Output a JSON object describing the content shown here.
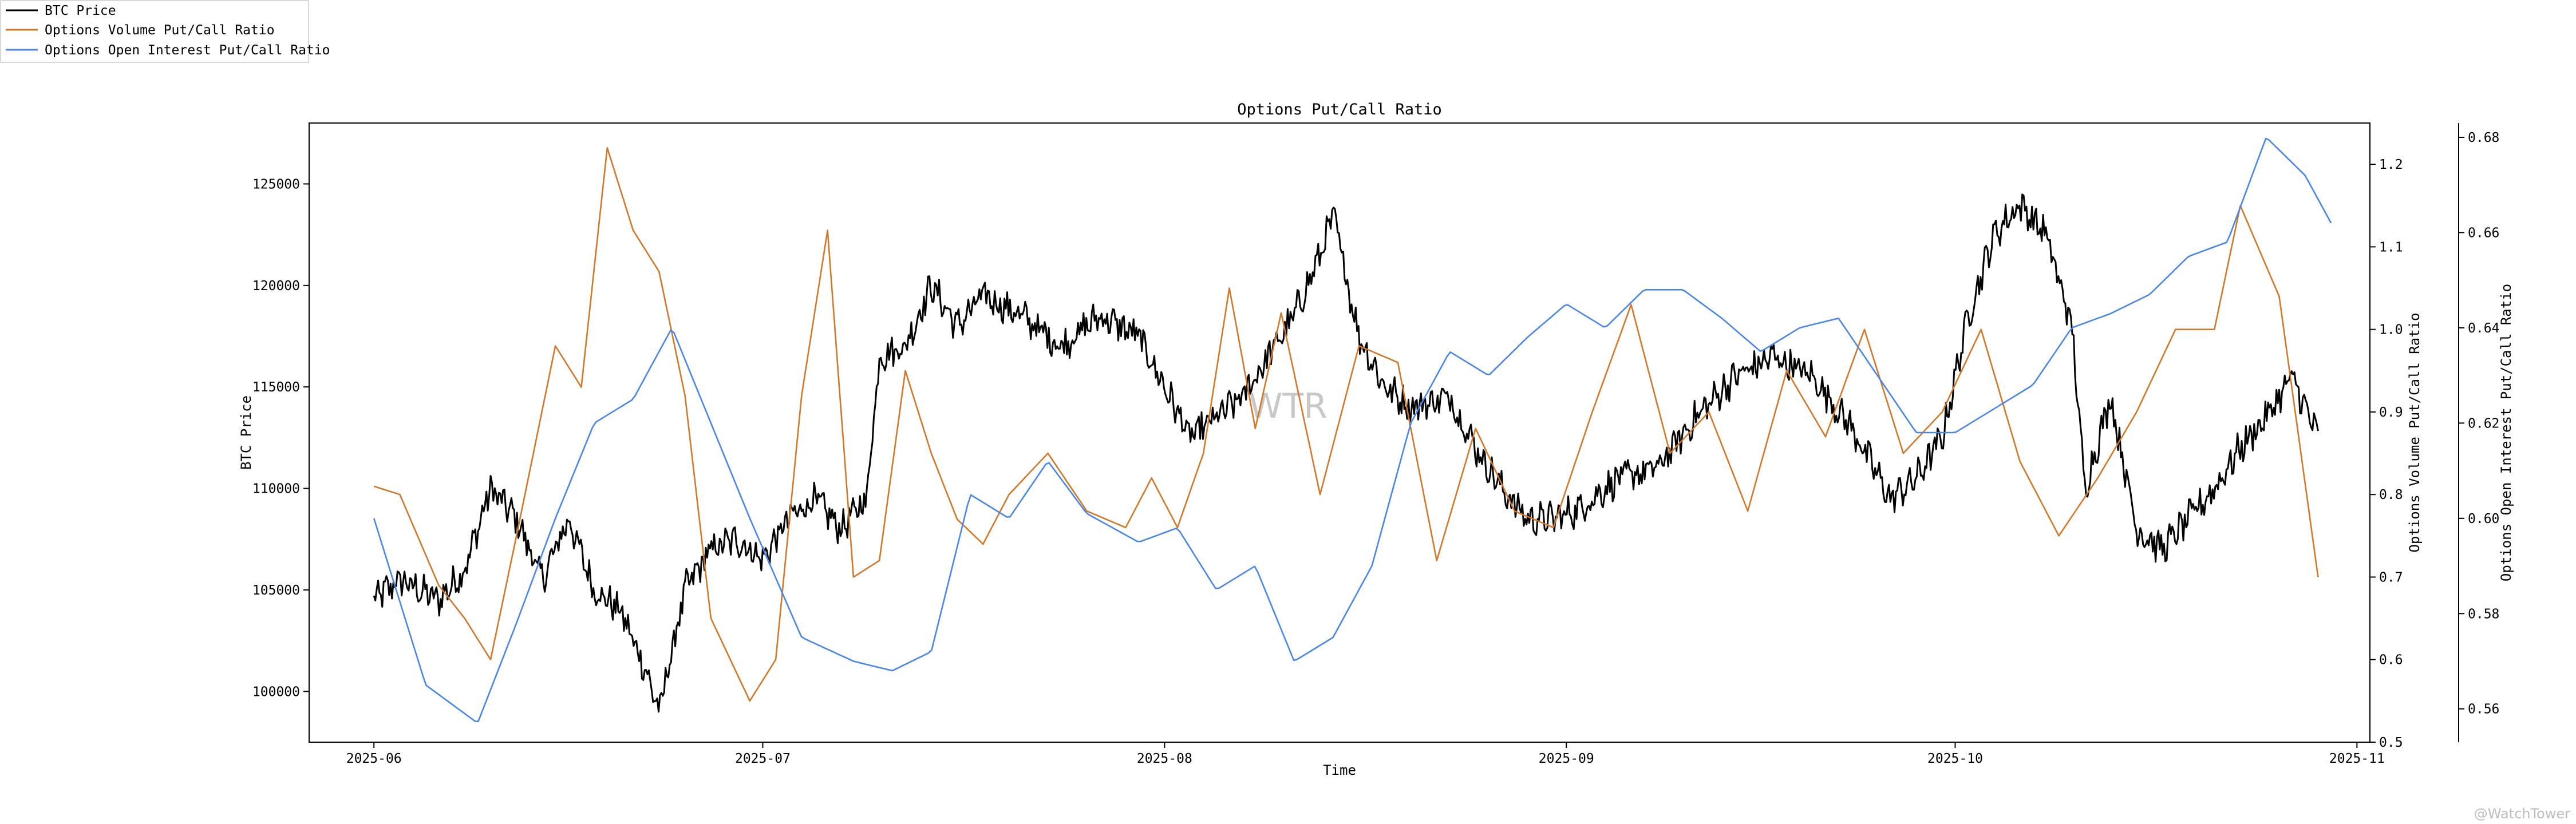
{
  "chart_data": {
    "type": "line",
    "title": "Options Put/Call Ratio",
    "xlabel": "Time",
    "x_ticks": [
      "2025-06",
      "2025-07",
      "2025-08",
      "2025-09",
      "2025-10",
      "2025-11"
    ],
    "x_range": [
      "2025-05-27",
      "2025-11-02"
    ],
    "watermark": "WTR",
    "corner_watermark": "@WatchTower",
    "legend_position": "top-left",
    "axes": [
      {
        "id": "btc",
        "label": "BTC Price",
        "side": "left",
        "range": [
          97500,
          128000
        ],
        "ticks": [
          "100000",
          "105000",
          "110000",
          "115000",
          "120000",
          "125000"
        ]
      },
      {
        "id": "vol",
        "label": "Options Volume Put/Call Ratio",
        "side": "right",
        "range": [
          0.5,
          1.25
        ],
        "ticks": [
          "0.5",
          "0.6",
          "0.7",
          "0.8",
          "0.9",
          "1.0",
          "1.1",
          "1.2"
        ]
      },
      {
        "id": "oi",
        "label": "Options Open Interest Put/Call Ratio",
        "side": "right-outer",
        "range": [
          0.553,
          0.683
        ],
        "ticks": [
          "0.56",
          "0.58",
          "0.60",
          "0.62",
          "0.64",
          "0.66",
          "0.68"
        ]
      }
    ],
    "series": [
      {
        "name": "BTC Price",
        "axis": "btc",
        "color": "#000000",
        "x": [
          "2025-06-01",
          "2025-06-03",
          "2025-06-06",
          "2025-06-08",
          "2025-06-10",
          "2025-06-12",
          "2025-06-14",
          "2025-06-16",
          "2025-06-18",
          "2025-06-20",
          "2025-06-22",
          "2025-06-23",
          "2025-06-25",
          "2025-06-27",
          "2025-06-29",
          "2025-07-01",
          "2025-07-03",
          "2025-07-05",
          "2025-07-07",
          "2025-07-09",
          "2025-07-10",
          "2025-07-12",
          "2025-07-14",
          "2025-07-16",
          "2025-07-18",
          "2025-07-21",
          "2025-07-24",
          "2025-07-27",
          "2025-07-30",
          "2025-08-01",
          "2025-08-03",
          "2025-08-05",
          "2025-08-07",
          "2025-08-09",
          "2025-08-11",
          "2025-08-13",
          "2025-08-14",
          "2025-08-16",
          "2025-08-18",
          "2025-08-20",
          "2025-08-23",
          "2025-08-25",
          "2025-08-27",
          "2025-08-29",
          "2025-08-31",
          "2025-09-02",
          "2025-09-05",
          "2025-09-08",
          "2025-09-11",
          "2025-09-14",
          "2025-09-17",
          "2025-09-20",
          "2025-09-23",
          "2025-09-26",
          "2025-09-28",
          "2025-09-30",
          "2025-10-02",
          "2025-10-04",
          "2025-10-06",
          "2025-10-08",
          "2025-10-10",
          "2025-10-11",
          "2025-10-13",
          "2025-10-15",
          "2025-10-17",
          "2025-10-19",
          "2025-10-21",
          "2025-10-23",
          "2025-10-25",
          "2025-10-27",
          "2025-10-29"
        ],
        "values": [
          104500,
          105500,
          104500,
          106000,
          110000,
          108500,
          105500,
          108500,
          105000,
          104000,
          101000,
          99000,
          105000,
          107000,
          107500,
          106500,
          108500,
          109500,
          108000,
          109500,
          116500,
          117000,
          120000,
          118000,
          119500,
          118500,
          117000,
          118500,
          117500,
          115000,
          112500,
          113500,
          114500,
          116500,
          118500,
          121500,
          123500,
          117500,
          115000,
          114000,
          114500,
          112000,
          110000,
          108500,
          108500,
          109000,
          110500,
          111000,
          113500,
          115500,
          116500,
          115500,
          113000,
          109500,
          110500,
          112500,
          118500,
          122500,
          124000,
          122500,
          118000,
          110000,
          114500,
          108000,
          107000,
          108500,
          110000,
          112000,
          113500,
          115500,
          112500
        ]
      },
      {
        "name": "Options Volume Put/Call Ratio",
        "axis": "vol",
        "color": "#d2782a",
        "x": [
          "2025-06-01",
          "2025-06-03",
          "2025-06-06",
          "2025-06-08",
          "2025-06-10",
          "2025-06-12",
          "2025-06-15",
          "2025-06-17",
          "2025-06-19",
          "2025-06-21",
          "2025-06-23",
          "2025-06-25",
          "2025-06-27",
          "2025-06-30",
          "2025-07-02",
          "2025-07-04",
          "2025-07-06",
          "2025-07-08",
          "2025-07-10",
          "2025-07-12",
          "2025-07-14",
          "2025-07-16",
          "2025-07-18",
          "2025-07-20",
          "2025-07-23",
          "2025-07-26",
          "2025-07-29",
          "2025-07-31",
          "2025-08-02",
          "2025-08-04",
          "2025-08-06",
          "2025-08-08",
          "2025-08-10",
          "2025-08-13",
          "2025-08-16",
          "2025-08-19",
          "2025-08-22",
          "2025-08-25",
          "2025-08-28",
          "2025-08-31",
          "2025-09-03",
          "2025-09-06",
          "2025-09-09",
          "2025-09-12",
          "2025-09-15",
          "2025-09-18",
          "2025-09-21",
          "2025-09-24",
          "2025-09-27",
          "2025-09-30",
          "2025-10-03",
          "2025-10-06",
          "2025-10-09",
          "2025-10-12",
          "2025-10-15",
          "2025-10-18",
          "2025-10-21",
          "2025-10-23",
          "2025-10-26",
          "2025-10-29"
        ],
        "values": [
          0.81,
          0.8,
          0.69,
          0.65,
          0.6,
          0.75,
          0.98,
          0.93,
          1.22,
          1.12,
          1.07,
          0.92,
          0.65,
          0.55,
          0.6,
          0.92,
          1.12,
          0.7,
          0.72,
          0.95,
          0.85,
          0.77,
          0.74,
          0.8,
          0.85,
          0.78,
          0.76,
          0.82,
          0.76,
          0.85,
          1.05,
          0.88,
          1.02,
          0.8,
          0.98,
          0.96,
          0.72,
          0.88,
          0.78,
          0.76,
          0.9,
          1.03,
          0.85,
          0.9,
          0.78,
          0.95,
          0.87,
          1.0,
          0.85,
          0.9,
          1.0,
          0.84,
          0.75,
          0.82,
          0.9,
          1.0,
          1.0,
          1.15,
          1.04,
          0.7
        ]
      },
      {
        "name": "Options Open Interest Put/Call Ratio",
        "axis": "oi",
        "color": "#4a86e8",
        "x": [
          "2025-06-01",
          "2025-06-05",
          "2025-06-09",
          "2025-06-12",
          "2025-06-15",
          "2025-06-18",
          "2025-06-21",
          "2025-06-24",
          "2025-06-27",
          "2025-06-30",
          "2025-07-04",
          "2025-07-08",
          "2025-07-11",
          "2025-07-14",
          "2025-07-17",
          "2025-07-20",
          "2025-07-23",
          "2025-07-26",
          "2025-07-30",
          "2025-08-02",
          "2025-08-05",
          "2025-08-08",
          "2025-08-11",
          "2025-08-14",
          "2025-08-17",
          "2025-08-20",
          "2025-08-23",
          "2025-08-26",
          "2025-08-29",
          "2025-09-01",
          "2025-09-04",
          "2025-09-07",
          "2025-09-10",
          "2025-09-13",
          "2025-09-16",
          "2025-09-19",
          "2025-09-22",
          "2025-09-25",
          "2025-09-28",
          "2025-10-01",
          "2025-10-04",
          "2025-10-07",
          "2025-10-10",
          "2025-10-13",
          "2025-10-16",
          "2025-10-19",
          "2025-10-22",
          "2025-10-25",
          "2025-10-28",
          "2025-10-30"
        ],
        "values": [
          0.6,
          0.565,
          0.557,
          0.578,
          0.6,
          0.62,
          0.625,
          0.64,
          0.62,
          0.6,
          0.575,
          0.57,
          0.568,
          0.572,
          0.605,
          0.6,
          0.612,
          0.601,
          0.595,
          0.598,
          0.585,
          0.59,
          0.57,
          0.575,
          0.59,
          0.62,
          0.635,
          0.63,
          0.638,
          0.645,
          0.64,
          0.648,
          0.648,
          0.642,
          0.635,
          0.64,
          0.642,
          0.63,
          0.618,
          0.618,
          0.623,
          0.628,
          0.64,
          0.643,
          0.647,
          0.655,
          0.658,
          0.68,
          0.672,
          0.662
        ]
      }
    ]
  }
}
